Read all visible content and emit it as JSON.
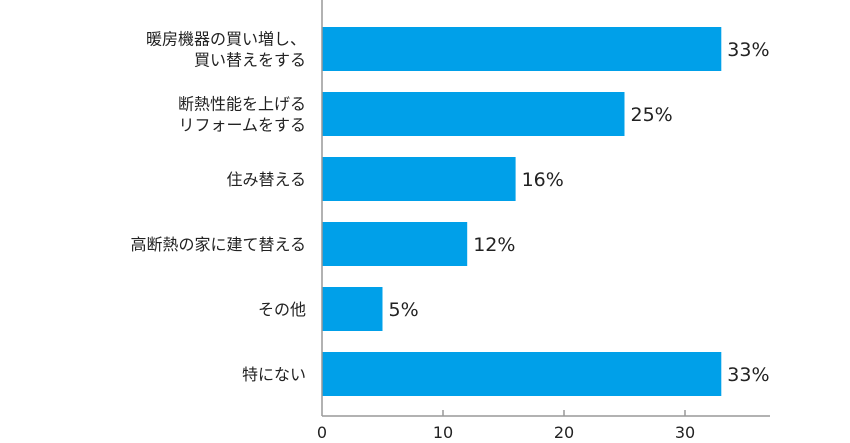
{
  "chart_data": {
    "type": "bar",
    "orientation": "horizontal",
    "title": "",
    "xlabel": "",
    "ylabel": "",
    "categories": [
      [
        "暖房機器の買い増し、",
        "買い替えをする"
      ],
      [
        "断熱性能を上げる",
        "リフォームをする"
      ],
      [
        "住み替える"
      ],
      [
        "高断熱の家に建て替える"
      ],
      [
        "その他"
      ],
      [
        "特にない"
      ]
    ],
    "values": [
      33,
      25,
      16,
      12,
      5,
      33
    ],
    "data_labels": [
      "33%",
      "25%",
      "16%",
      "12%",
      "5%",
      "33%"
    ],
    "xlim": [
      0,
      37
    ],
    "x_ticks": [
      0,
      10,
      20,
      30
    ],
    "bar_color": "#00a0e9",
    "axis_color": "#999999",
    "grid": false,
    "legend": "none"
  }
}
